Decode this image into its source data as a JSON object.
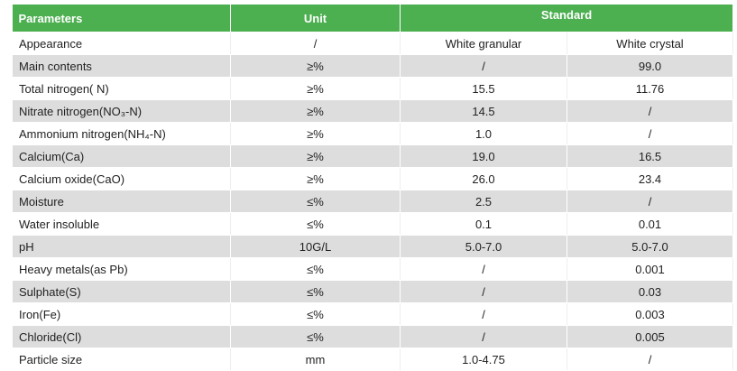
{
  "header": {
    "col_parameters": "Parameters",
    "col_unit": "Unit",
    "col_standard": "Standard"
  },
  "rows": [
    {
      "param": "Appearance",
      "unit": "/",
      "granular": "White granular",
      "crystal": "White crystal"
    },
    {
      "param": "Main contents",
      "unit": "≥%",
      "granular": "/",
      "crystal": "99.0"
    },
    {
      "param": "Total nitrogen( N)",
      "unit": "≥%",
      "granular": "15.5",
      "crystal": "11.76"
    },
    {
      "param": "Nitrate nitrogen(NO₃-N)",
      "unit": "≥%",
      "granular": "14.5",
      "crystal": "/"
    },
    {
      "param": "Ammonium nitrogen(NH₄-N)",
      "unit": "≥%",
      "granular": "1.0",
      "crystal": "/"
    },
    {
      "param": "Calcium(Ca)",
      "unit": "≥%",
      "granular": "19.0",
      "crystal": "16.5"
    },
    {
      "param": "Calcium oxide(CaO)",
      "unit": "≥%",
      "granular": "26.0",
      "crystal": "23.4"
    },
    {
      "param": "Moisture",
      "unit": "≤%",
      "granular": "2.5",
      "crystal": "/"
    },
    {
      "param": "Water insoluble",
      "unit": "≤%",
      "granular": "0.1",
      "crystal": "0.01"
    },
    {
      "param": "pH",
      "unit": "10G/L",
      "granular": "5.0-7.0",
      "crystal": "5.0-7.0"
    },
    {
      "param": "Heavy metals(as Pb)",
      "unit": "≤%",
      "granular": "/",
      "crystal": "0.001"
    },
    {
      "param": "Sulphate(S)",
      "unit": "≤%",
      "granular": "/",
      "crystal": "0.03"
    },
    {
      "param": "Iron(Fe)",
      "unit": "≤%",
      "granular": "/",
      "crystal": "0.003"
    },
    {
      "param": "Chloride(Cl)",
      "unit": "≤%",
      "granular": "/",
      "crystal": "0.005"
    },
    {
      "param": "Particle size",
      "unit": "mm",
      "granular": "1.0-4.75",
      "crystal": "/"
    }
  ],
  "colors": {
    "header_green": "#4caf50",
    "row_shade": "#dddddd"
  }
}
